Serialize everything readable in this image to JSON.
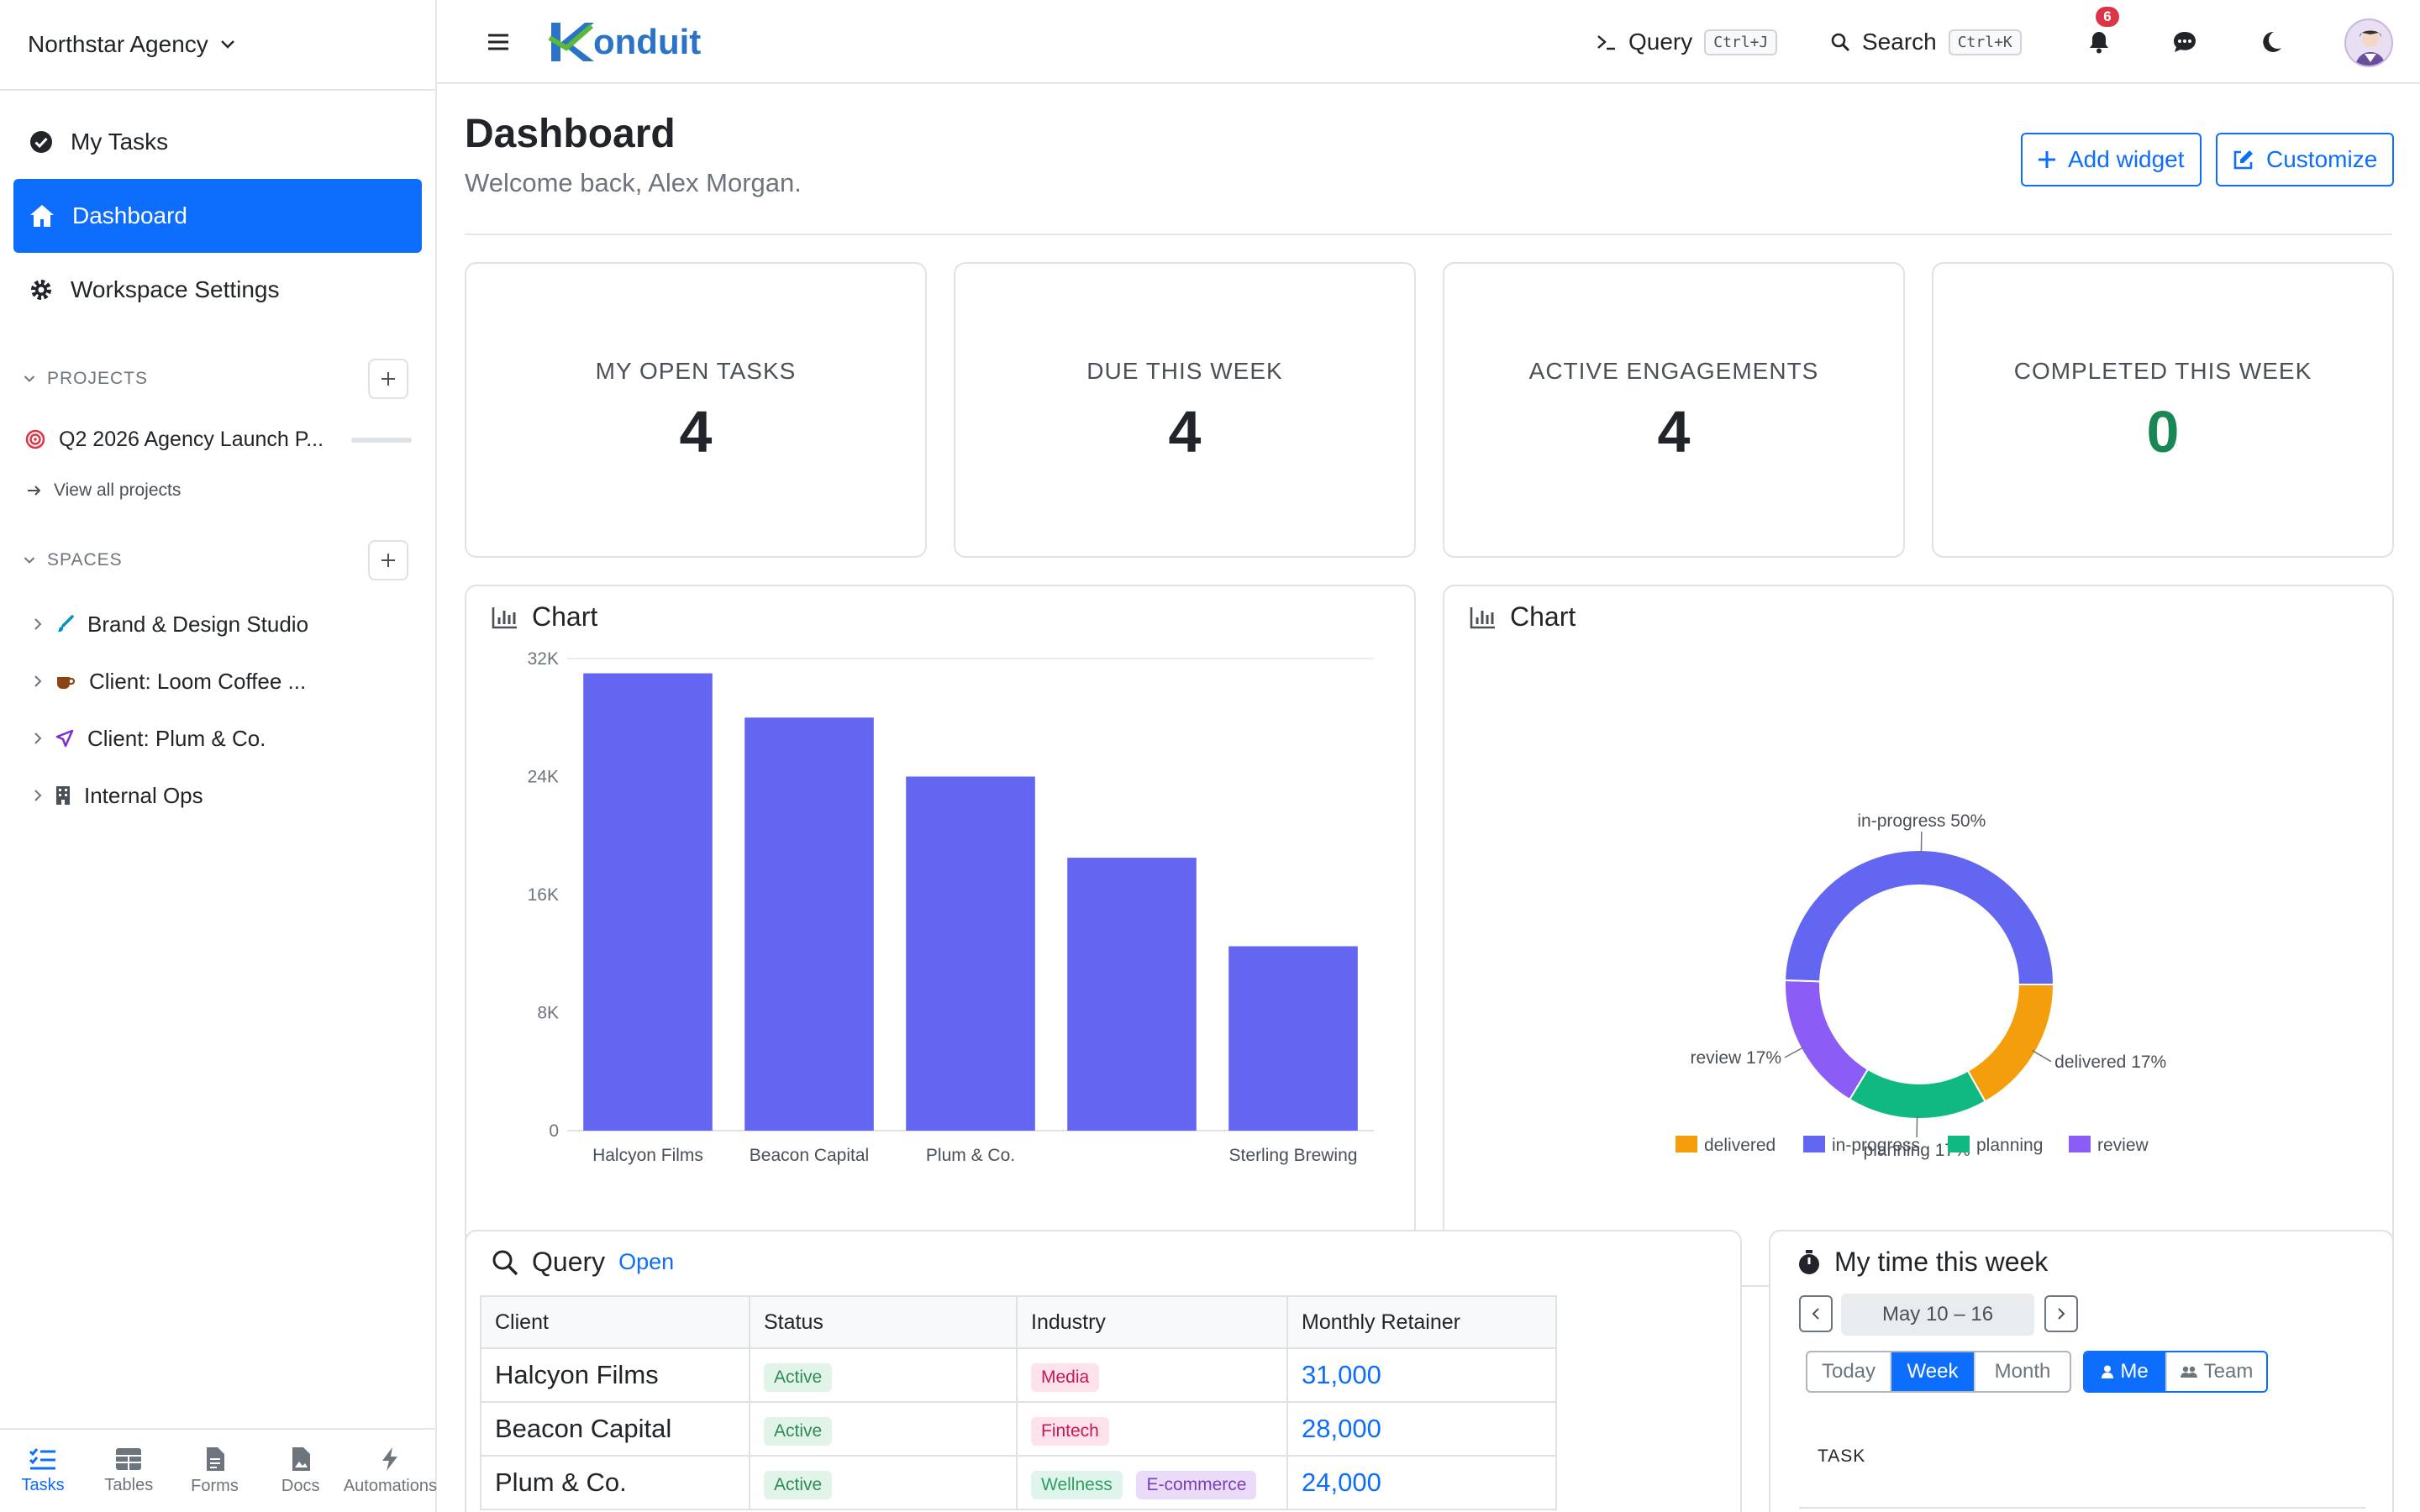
{
  "sidebar": {
    "org_name": "Northstar Agency",
    "nav": [
      {
        "label": "My Tasks"
      },
      {
        "label": "Dashboard"
      },
      {
        "label": "Workspace Settings"
      }
    ],
    "projects_heading": "PROJECTS",
    "projects": [
      {
        "label": "Q2 2026 Agency Launch P..."
      }
    ],
    "view_all": "View all projects",
    "spaces_heading": "SPACES",
    "spaces": [
      {
        "label": "Brand & Design Studio"
      },
      {
        "label": "Client: Loom Coffee ..."
      },
      {
        "label": "Client: Plum & Co."
      },
      {
        "label": "Internal Ops"
      }
    ],
    "bottom_nav": [
      {
        "label": "Tasks"
      },
      {
        "label": "Tables"
      },
      {
        "label": "Forms"
      },
      {
        "label": "Docs"
      },
      {
        "label": "Automations"
      }
    ]
  },
  "topbar": {
    "logo_text": "onduit",
    "query_label": "Query",
    "query_shortcut": "Ctrl+J",
    "search_label": "Search",
    "search_shortcut": "Ctrl+K",
    "notification_count": "6"
  },
  "header": {
    "title": "Dashboard",
    "welcome": "Welcome back, Alex Morgan.",
    "add_widget": "Add widget",
    "customize": "Customize"
  },
  "stats": [
    {
      "label": "MY OPEN TASKS",
      "value": "4"
    },
    {
      "label": "DUE THIS WEEK",
      "value": "4"
    },
    {
      "label": "ACTIVE ENGAGEMENTS",
      "value": "4"
    },
    {
      "label": "COMPLETED THIS WEEK",
      "value": "0"
    }
  ],
  "colors": {
    "accent": "#0d6efd",
    "bar": "#6366f1",
    "delivered": "#f59e0b",
    "in_progress": "#6366f1",
    "planning": "#10b981",
    "review": "#8b5cf6",
    "completed_value": "#198754"
  },
  "chart_data": [
    {
      "type": "bar",
      "title": "Chart",
      "categories": [
        "Halcyon Films",
        "Beacon Capital",
        "Plum & Co.",
        "",
        "Sterling Brewing"
      ],
      "values": [
        31000,
        28000,
        24000,
        18500,
        12500
      ],
      "ylim": [
        0,
        32000
      ],
      "yticks": [
        "0",
        "8K",
        "16K",
        "24K",
        "32K"
      ],
      "tick_values": [
        0,
        8000,
        16000,
        24000,
        32000
      ],
      "grid": false
    },
    {
      "type": "pie",
      "title": "Chart",
      "slices": [
        {
          "name": "delivered",
          "value": 17,
          "label": "delivered 17%"
        },
        {
          "name": "planning",
          "value": 17,
          "label": "planning 17%"
        },
        {
          "name": "review",
          "value": 17,
          "label": "review 17%"
        },
        {
          "name": "in-progress",
          "value": 50,
          "label": "in-progress 50%"
        }
      ],
      "legend": [
        "delivered",
        "in-progress",
        "planning",
        "review"
      ],
      "legend_position": "bottom"
    }
  ],
  "query_widget": {
    "title": "Query",
    "open_link": "Open",
    "columns": [
      "Client",
      "Status",
      "Industry",
      "Monthly Retainer"
    ],
    "rows": [
      {
        "client": "Halcyon Films",
        "status": "Active",
        "industry": [
          "Media"
        ],
        "retainer": "31,000"
      },
      {
        "client": "Beacon Capital",
        "status": "Active",
        "industry": [
          "Fintech"
        ],
        "retainer": "28,000"
      },
      {
        "client": "Plum & Co.",
        "status": "Active",
        "industry": [
          "Wellness",
          "E-commerce"
        ],
        "retainer": "24,000"
      }
    ]
  },
  "time_widget": {
    "title": "My time this week",
    "date_range": "May 10 – 16",
    "range_options": [
      "Today",
      "Week",
      "Month"
    ],
    "selected_range": "Week",
    "scope_options": [
      "Me",
      "Team"
    ],
    "selected_scope": "Me",
    "task_header": "TASK"
  }
}
